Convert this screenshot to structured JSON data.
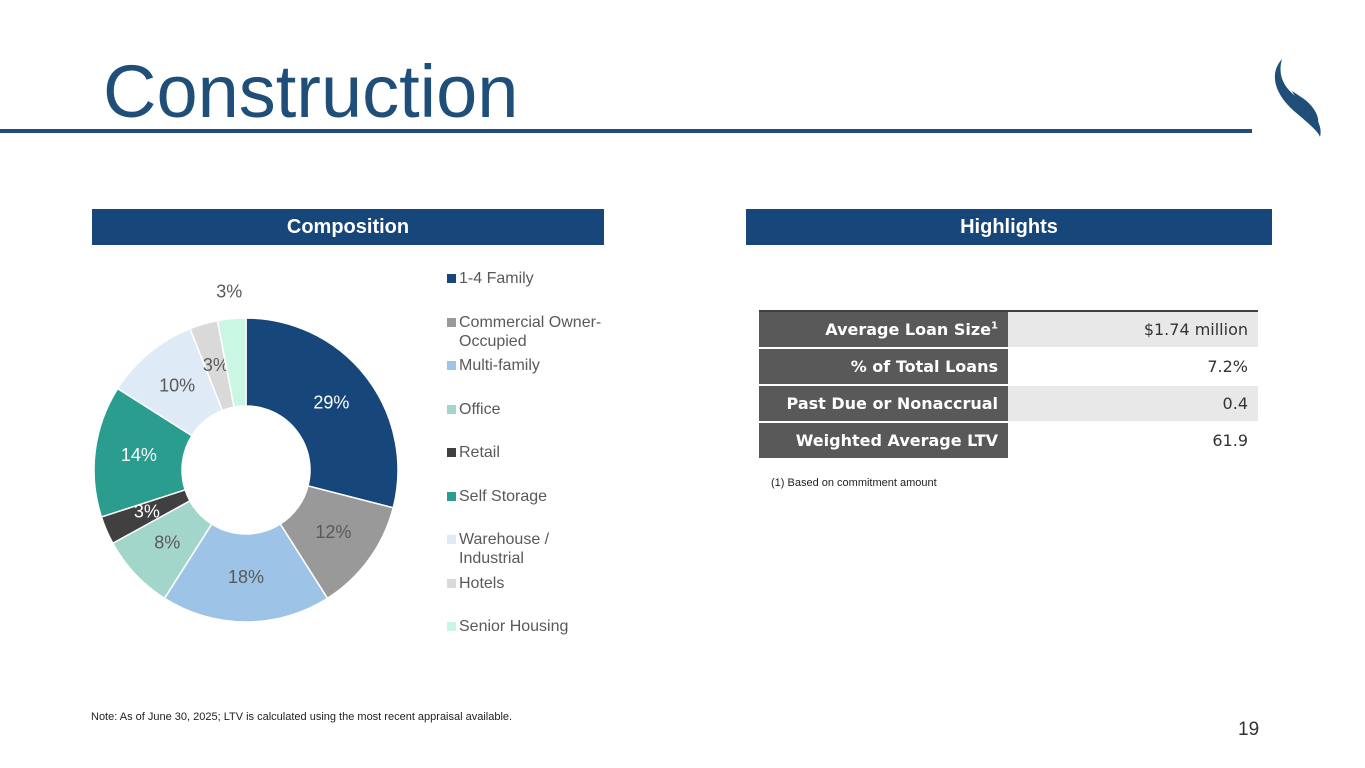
{
  "header": {
    "title": "Construction"
  },
  "composition": {
    "heading": "Composition"
  },
  "chart_data": {
    "type": "donut",
    "categories": [
      "1-4 Family",
      "Commercial Owner-Occupied",
      "Multi-family",
      "Office",
      "Retail",
      "Self Storage",
      "Warehouse / Industrial",
      "Hotels",
      "Senior Housing"
    ],
    "values": [
      29,
      12,
      18,
      8,
      3,
      14,
      10,
      3,
      3
    ],
    "value_labels": [
      "29%",
      "12%",
      "18%",
      "8%",
      "3%",
      "14%",
      "10%",
      "3%",
      "3%"
    ],
    "colors": [
      "#17467a",
      "#999999",
      "#9dc3e6",
      "#a3d6cb",
      "#404040",
      "#2a9d8f",
      "#deebf7",
      "#d9d9d9",
      "#c9f7e3"
    ],
    "legend": "right"
  },
  "highlights": {
    "heading": "Highlights",
    "rows": [
      {
        "label": "Average Loan Size",
        "footnote_mark": "1",
        "value": "$1.74 million"
      },
      {
        "label": "% of Total Loans",
        "value": "7.2%"
      },
      {
        "label": "Past Due or Nonaccrual",
        "value": "0.4"
      },
      {
        "label": "Weighted Average LTV",
        "value": "61.9"
      }
    ],
    "footnote": "(1) Based on commitment amount"
  },
  "note": "Note: As of June 30, 2025; LTV is calculated using the most recent appraisal available.",
  "page_number": "19"
}
